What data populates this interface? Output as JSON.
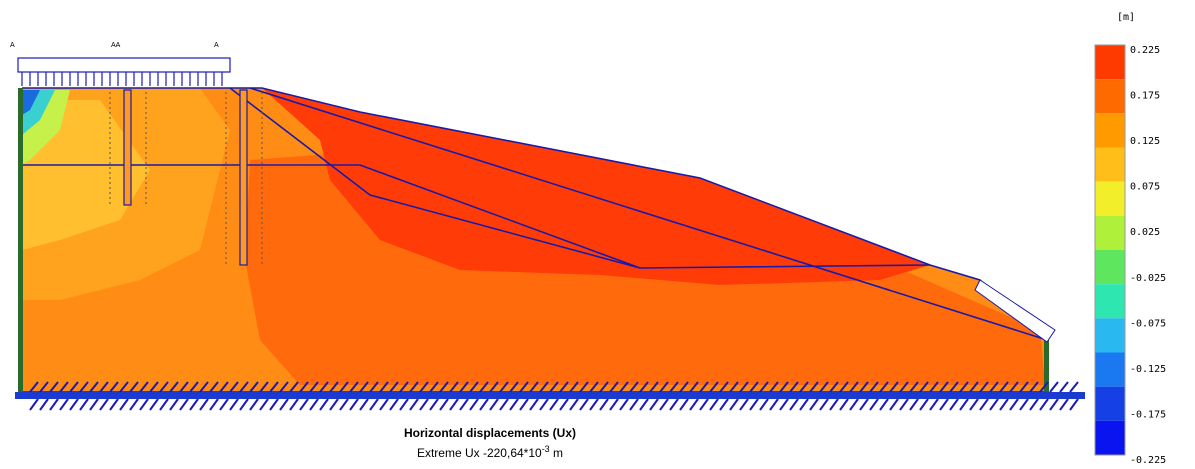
{
  "caption": {
    "title": "Horizontal displacements (Ux)",
    "extreme_prefix": "Extreme Ux -220,64*10",
    "extreme_exponent": "-3",
    "extreme_unit": " m"
  },
  "legend": {
    "unit": "[m]",
    "labels": [
      "0.225",
      "0.175",
      "0.125",
      "0.075",
      "0.025",
      "-0.025",
      "-0.075",
      "-0.125",
      "-0.175",
      "-0.225"
    ],
    "colors": [
      "#ff3a00",
      "#ff6a00",
      "#ff9a00",
      "#ffbe1a",
      "#f2ee2a",
      "#aef03a",
      "#5ee65e",
      "#2ee6b0",
      "#2ab8f0",
      "#1a78f0",
      "#1440e6",
      "#0a14f0"
    ]
  },
  "markers": {
    "top_labels": [
      "A",
      "AA",
      "A"
    ]
  },
  "colors": {
    "main_fill": "#ff8c14",
    "slope_core": "#ff4a0e",
    "upper_core": "#ff3a08",
    "left_yellow": "#ffc02a",
    "boundary_blue": "#1a1aa8",
    "support_green": "#2a6a2a"
  }
}
